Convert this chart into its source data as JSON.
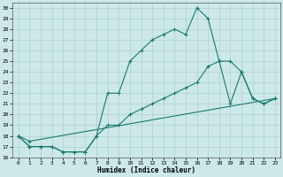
{
  "xlabel": "Humidex (Indice chaleur)",
  "bg_color": "#cce8e8",
  "line_color": "#1a7a6e",
  "grid_color": "#b0d0d0",
  "xlim": [
    -0.5,
    23.5
  ],
  "ylim": [
    16.0,
    30.5
  ],
  "xticks": [
    0,
    1,
    2,
    3,
    4,
    5,
    6,
    7,
    8,
    9,
    10,
    11,
    12,
    13,
    14,
    15,
    16,
    17,
    18,
    19,
    20,
    21,
    22,
    23
  ],
  "yticks": [
    16,
    17,
    18,
    19,
    20,
    21,
    22,
    23,
    24,
    25,
    26,
    27,
    28,
    29,
    30
  ],
  "line1_x": [
    0,
    1,
    2,
    3,
    4,
    5,
    6,
    7,
    8,
    9,
    10,
    11,
    12,
    13,
    14,
    15,
    16,
    17,
    18,
    19,
    20,
    21,
    22,
    23
  ],
  "line1_y": [
    18,
    17,
    17,
    17,
    16.5,
    16.5,
    16.5,
    18,
    22,
    22,
    25,
    26,
    27,
    27.5,
    28,
    27.5,
    30,
    29,
    25,
    25,
    24,
    21.5,
    21,
    21.5
  ],
  "line2_x": [
    0,
    1,
    2,
    3,
    4,
    5,
    6,
    7,
    8,
    9,
    10,
    11,
    12,
    13,
    14,
    15,
    16,
    17,
    18,
    19,
    20,
    21,
    22,
    23
  ],
  "line2_y": [
    18,
    17,
    17,
    17,
    16.5,
    16.5,
    16.5,
    18,
    19,
    19,
    20,
    20.5,
    21,
    21.5,
    22,
    22.5,
    23,
    24.5,
    25,
    21,
    24,
    21.5,
    21,
    21.5
  ],
  "line3_x": [
    0,
    1,
    23
  ],
  "line3_y": [
    18,
    17.5,
    21.5
  ]
}
